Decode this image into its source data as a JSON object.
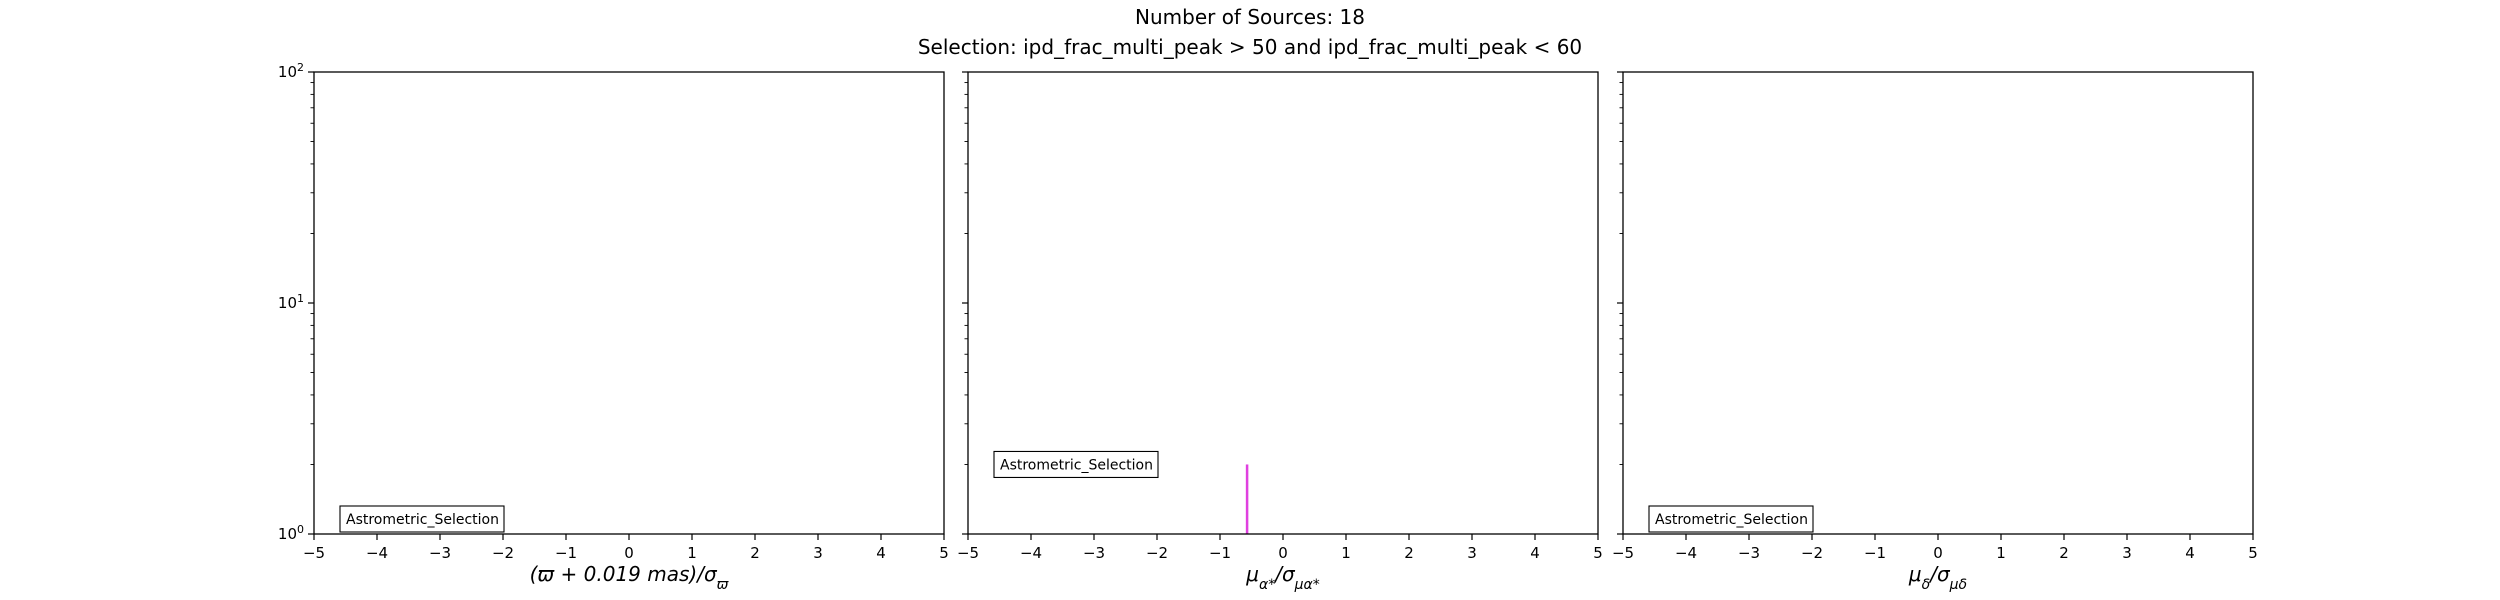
{
  "figure": {
    "title_line1": "Number of Sources: 18",
    "title_line2": "Selection: ipd_frac_multi_peak > 50 and ipd_frac_multi_peak < 60"
  },
  "chart_data": [
    {
      "type": "bar",
      "title": "",
      "xlabel": "(ϖ + 0.019 mas)/σϖ",
      "ylabel": "",
      "xlim": [
        -5,
        5
      ],
      "ylim": [
        1,
        100
      ],
      "yscale": "log",
      "x_ticks": [
        -5,
        -4,
        -3,
        -2,
        -1,
        0,
        1,
        2,
        3,
        4,
        5
      ],
      "y_ticks": [
        {
          "value": 1,
          "base": "10",
          "exp": "0"
        },
        {
          "value": 10,
          "base": "10",
          "exp": "1"
        },
        {
          "value": 100,
          "base": "10",
          "exp": "2"
        }
      ],
      "legend": {
        "label": "Astrometric_Selection",
        "position": "lower-left"
      },
      "bins": [],
      "color": "#e040e0"
    },
    {
      "type": "bar",
      "title": "",
      "xlabel": "μα*/σμα*",
      "ylabel": "",
      "xlim": [
        -5,
        5
      ],
      "ylim": [
        1,
        100
      ],
      "yscale": "log",
      "x_ticks": [
        -5,
        -4,
        -3,
        -2,
        -1,
        0,
        1,
        2,
        3,
        4,
        5
      ],
      "y_ticks": [
        {
          "value": 1,
          "base": "10",
          "exp": "0"
        },
        {
          "value": 10,
          "base": "10",
          "exp": "1"
        },
        {
          "value": 100,
          "base": "10",
          "exp": "2"
        }
      ],
      "legend": {
        "label": "Astrometric_Selection",
        "position": "lower-left"
      },
      "bins": [
        {
          "x": -0.57,
          "count": 2
        }
      ],
      "color": "#e040e0"
    },
    {
      "type": "bar",
      "title": "",
      "xlabel": "μδ/σμδ",
      "ylabel": "",
      "xlim": [
        -5,
        5
      ],
      "ylim": [
        1,
        100
      ],
      "yscale": "log",
      "x_ticks": [
        -5,
        -4,
        -3,
        -2,
        -1,
        0,
        1,
        2,
        3,
        4,
        5
      ],
      "y_ticks": [
        {
          "value": 1,
          "base": "10",
          "exp": "0"
        },
        {
          "value": 10,
          "base": "10",
          "exp": "1"
        },
        {
          "value": 100,
          "base": "10",
          "exp": "2"
        }
      ],
      "legend": {
        "label": "Astrometric_Selection",
        "position": "lower-left"
      },
      "bins": [],
      "color": "#e040e0"
    }
  ]
}
